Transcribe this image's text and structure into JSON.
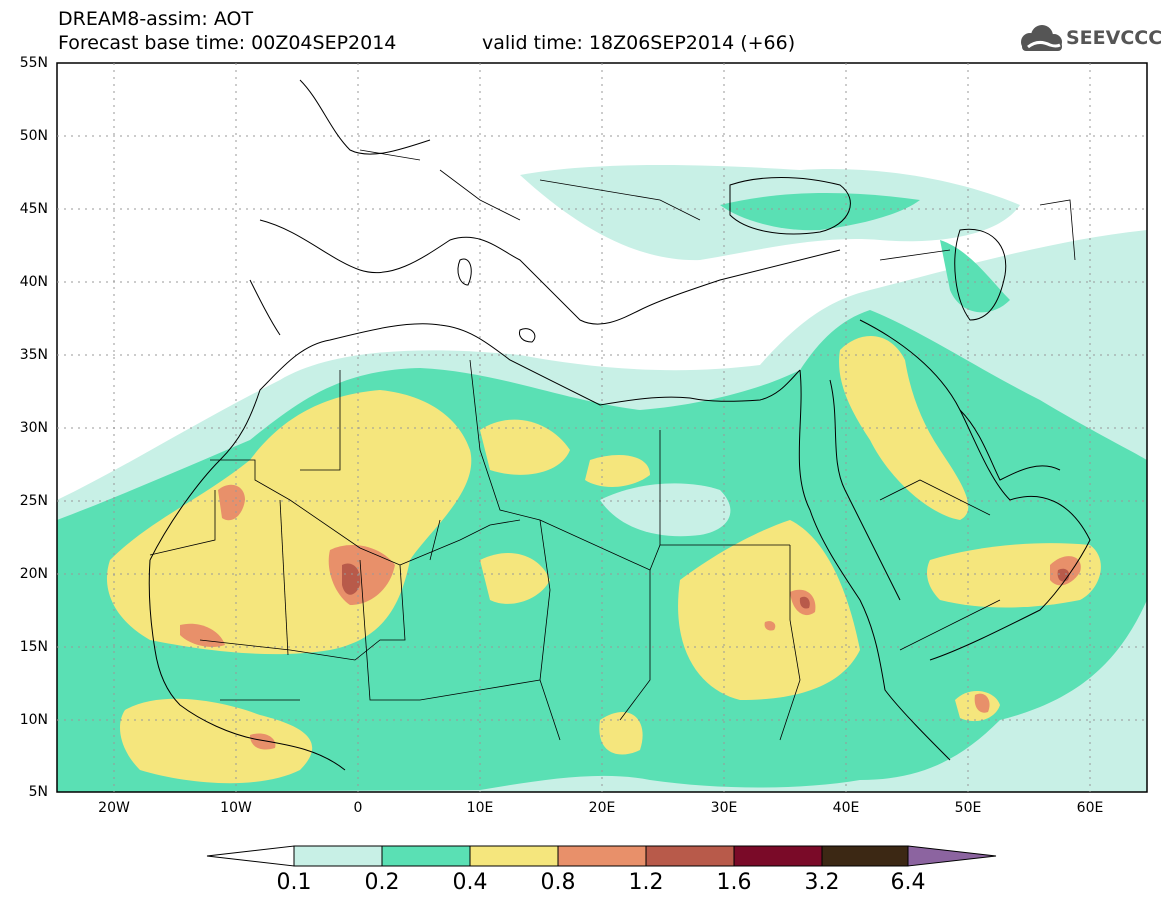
{
  "header": {
    "line1": "DREAM8-assim: AOT",
    "line2": "Forecast base time: 00Z04SEP2014",
    "valid": "valid time: 18Z06SEP2014 (+66)",
    "logo_text": "SEEVCCC"
  },
  "axes": {
    "lat_labels": [
      "55N",
      "50N",
      "45N",
      "40N",
      "35N",
      "30N",
      "25N",
      "20N",
      "15N",
      "10N",
      "5N"
    ],
    "lon_labels": [
      "20W",
      "10W",
      "0",
      "10E",
      "20E",
      "30E",
      "40E",
      "50E",
      "60E"
    ]
  },
  "colorbar": {
    "labels": [
      "0.1",
      "0.2",
      "0.4",
      "0.8",
      "1.2",
      "1.6",
      "3.2",
      "6.4"
    ],
    "colors": [
      "#ffffff",
      "#c8f0e6",
      "#5ae0b4",
      "#f5e67d",
      "#e8906a",
      "#b85a4a",
      "#7a0a28",
      "#3c2814",
      "#8c64a0"
    ]
  },
  "field_colors": {
    "very_light": "#c8f0e6",
    "light": "#5ae0b4",
    "moderate": "#f5e67d",
    "high": "#e8906a",
    "very_high": "#b85a4a",
    "extreme": "#7a0a28"
  }
}
